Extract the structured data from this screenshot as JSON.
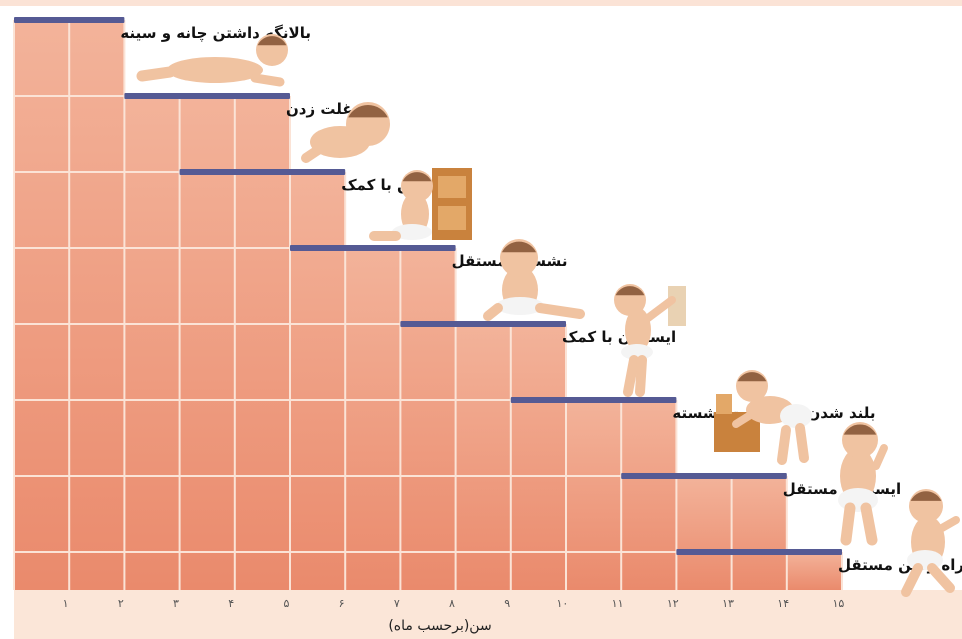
{
  "chart_data": {
    "type": "bar",
    "orientation": "horizontal-range",
    "xlabel": "سن(برحسب ماه)",
    "x_ticks": [
      "۱",
      "۲",
      "۳",
      "۴",
      "۵",
      "۶",
      "۷",
      "۸",
      "۹",
      "۱۰",
      "۱۱",
      "۱۲",
      "۱۳",
      "۱۴",
      "۱۵"
    ],
    "xlim": [
      0,
      15
    ],
    "milestones": [
      {
        "label": "بالانگه داشتن چانه و سینه",
        "start": 0,
        "end": 2
      },
      {
        "label": "غلت زدن",
        "start": 2,
        "end": 5
      },
      {
        "label": "نشستن با کمک",
        "start": 3,
        "end": 6
      },
      {
        "label": "نشستن مستقل",
        "start": 5,
        "end": 8
      },
      {
        "label": "ایستادن با کمک",
        "start": 7,
        "end": 10
      },
      {
        "label": "بلند شدن از وضعیت نشسته",
        "start": 9,
        "end": 12
      },
      {
        "label": "ایستادن مستقل",
        "start": 11,
        "end": 14
      },
      {
        "label": "راه رفتن مستقل",
        "start": 12,
        "end": 15
      }
    ],
    "colors": {
      "range_bar": "#555a94",
      "column_fill_light": "#f3b39a",
      "column_fill_dark": "#ea8a6c",
      "grid_line": "#fbe3d6",
      "axis_band": "#fbe6d8",
      "skin": "#f0c3a1",
      "hair": "#7a4a2a",
      "diaper": "#f4f4f4",
      "furniture": "#c9823d"
    },
    "illustrations": [
      "baby-lying-icon",
      "baby-rolling-icon",
      "baby-sitting-supported-icon",
      "baby-sitting-icon",
      "baby-standing-supported-icon",
      "baby-pulling-up-icon",
      "baby-standing-icon",
      "baby-walking-icon"
    ]
  }
}
